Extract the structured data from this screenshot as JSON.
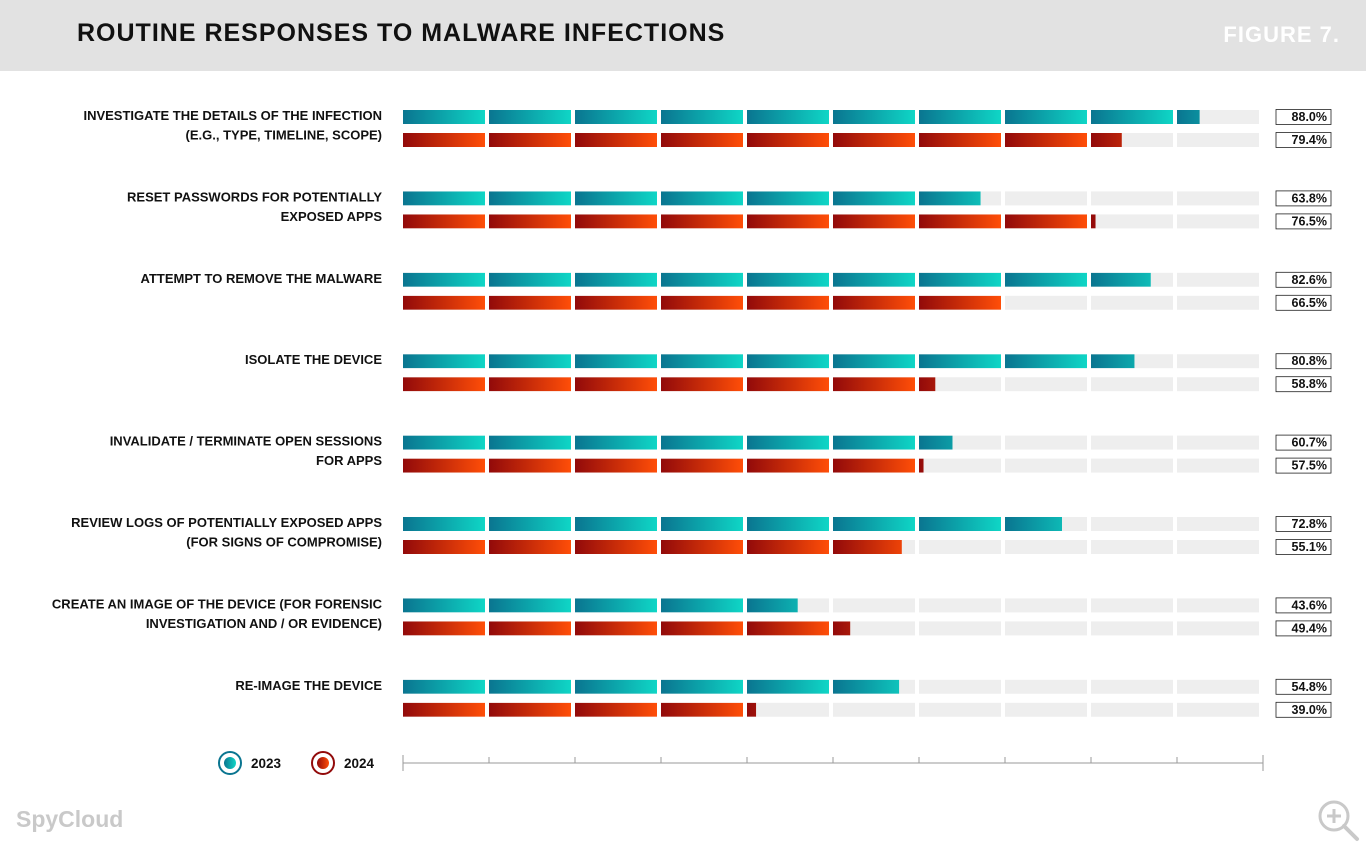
{
  "header": {
    "title": "ROUTINE RESPONSES TO MALWARE INFECTIONS",
    "figure": "FIGURE 7."
  },
  "brand": "SpyCloud",
  "colors": {
    "teal_dark": "#0a7590",
    "teal_light": "#0fd6c6",
    "red_dark": "#920a0a",
    "red_light": "#ff4e08",
    "empty_segment": "#eeeeee"
  },
  "chart_data": {
    "type": "bar",
    "orientation": "horizontal",
    "title": "ROUTINE RESPONSES TO MALWARE INFECTIONS",
    "categories": [
      [
        "INVESTIGATE THE DETAILS OF THE INFECTION",
        "(E.G., TYPE, TIMELINE, SCOPE)"
      ],
      [
        "RESET PASSWORDS FOR POTENTIALLY",
        "EXPOSED APPS"
      ],
      [
        "ATTEMPT TO REMOVE THE MALWARE"
      ],
      [
        "ISOLATE THE DEVICE"
      ],
      [
        "INVALIDATE / TERMINATE OPEN SESSIONS",
        "FOR APPS"
      ],
      [
        "REVIEW LOGS OF POTENTIALLY EXPOSED APPS",
        "(FOR SIGNS OF COMPROMISE)"
      ],
      [
        "CREATE AN IMAGE OF THE DEVICE (FOR FORENSIC",
        "INVESTIGATION AND / OR EVIDENCE)"
      ],
      [
        "RE-IMAGE THE DEVICE"
      ]
    ],
    "series": [
      {
        "name": "2023",
        "values": [
          88.0,
          63.8,
          82.6,
          80.8,
          60.7,
          72.8,
          43.6,
          54.8
        ],
        "labels": [
          "88.0%",
          "63.8%",
          "82.6%",
          "80.8%",
          "60.7%",
          "72.8%",
          "43.6%",
          "54.8%"
        ]
      },
      {
        "name": "2024",
        "values": [
          79.4,
          76.5,
          66.5,
          58.8,
          57.5,
          55.1,
          49.4,
          39.0
        ],
        "labels": [
          "79.4%",
          "76.5%",
          "66.5%",
          "58.8%",
          "57.5%",
          "55.1%",
          "49.4%",
          "39.0%"
        ]
      }
    ],
    "xlim": [
      0,
      95
    ],
    "segments": 10,
    "legend_position": "bottom-left"
  }
}
